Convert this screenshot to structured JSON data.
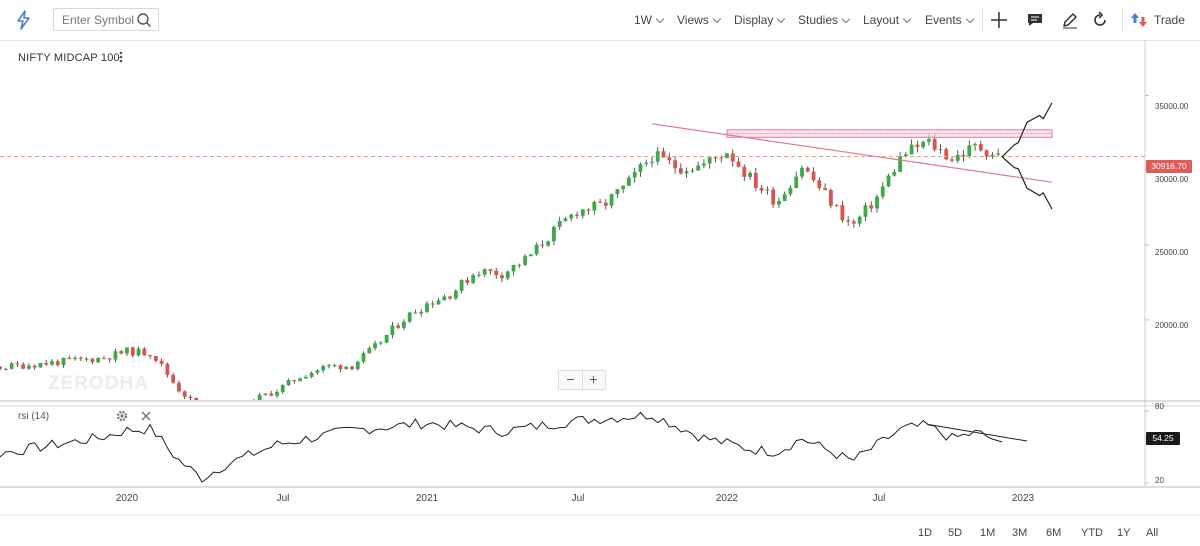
{
  "toolbar": {
    "search_placeholder": "Enter Symbol",
    "interval": "1W",
    "menus": [
      "Views",
      "Display",
      "Studies",
      "Layout",
      "Events"
    ],
    "trade_label": "Trade"
  },
  "symbol": "NIFTY MIDCAP 100",
  "watermark": "ZERODHA",
  "rsi_label": "rsi (14)",
  "zoom": {
    "minus": "−",
    "plus": "+"
  },
  "time_ranges": [
    "1D",
    "5D",
    "1M",
    "3M",
    "6M",
    "YTD",
    "1Y",
    "All"
  ],
  "colors": {
    "up": "#3ea84a",
    "down": "#d9534f",
    "price_line": "#e8a07a",
    "resistance_zone": "#e07aa0",
    "trendline": "#e07a8e"
  },
  "chart_data": {
    "type": "candlestick",
    "price_axis": {
      "ticks": [
        "35000.00",
        "30000.00",
        "25000.00",
        "20000.00"
      ],
      "ylim": [
        14650,
        38700
      ]
    },
    "rsi_axis": {
      "ticks": [
        "80",
        "50",
        "20"
      ],
      "ylim": [
        17.5,
        82.5
      ]
    },
    "x_ticks": [
      "2020",
      "Jul",
      "2021",
      "Jul",
      "2022",
      "Jul",
      "2023"
    ],
    "last_price": "30916.70",
    "last_price_value": 30916.7,
    "rsi_value": "54.25",
    "rsi_value_num": 54.25,
    "price_path": [
      [
        "2019-04",
        16450
      ],
      [
        "2019-07",
        16700
      ],
      [
        "2019-10",
        17150
      ],
      [
        "2019-12",
        17450
      ],
      [
        "2020-01",
        17900
      ],
      [
        "2020-02",
        17800
      ],
      [
        "2020-03",
        15500
      ],
      [
        "2020-04",
        13900
      ],
      [
        "2020-05",
        13400
      ],
      [
        "2020-06",
        14600
      ],
      [
        "2020-07",
        15300
      ],
      [
        "2020-08",
        16300
      ],
      [
        "2020-09",
        16900
      ],
      [
        "2020-10",
        16950
      ],
      [
        "2020-11",
        18300
      ],
      [
        "2020-12",
        20000
      ],
      [
        "2021-01",
        21100
      ],
      [
        "2021-02",
        21800
      ],
      [
        "2021-03",
        23300
      ],
      [
        "2021-04",
        23100
      ],
      [
        "2021-05",
        24100
      ],
      [
        "2021-06",
        25800
      ],
      [
        "2021-07",
        27300
      ],
      [
        "2021-08",
        27600
      ],
      [
        "2021-09",
        29000
      ],
      [
        "2021-10",
        31000
      ],
      [
        "2021-11",
        30200
      ],
      [
        "2021-12",
        30300
      ],
      [
        "2022-01",
        31300
      ],
      [
        "2022-02",
        29300
      ],
      [
        "2022-03",
        27900
      ],
      [
        "2022-04",
        30300
      ],
      [
        "2022-05",
        28200
      ],
      [
        "2022-06",
        26200
      ],
      [
        "2022-07",
        28200
      ],
      [
        "2022-08",
        31000
      ],
      [
        "2022-09",
        31900
      ],
      [
        "2022-10",
        30800
      ],
      [
        "2022-11",
        31600
      ],
      [
        "2022-12",
        30900
      ]
    ],
    "rsi_path": [
      [
        "2019-04",
        40
      ],
      [
        "2019-08",
        45
      ],
      [
        "2019-12",
        58
      ],
      [
        "2020-01",
        64
      ],
      [
        "2020-02",
        65
      ],
      [
        "2020-03",
        40
      ],
      [
        "2020-04",
        24
      ],
      [
        "2020-05",
        36
      ],
      [
        "2020-07",
        52
      ],
      [
        "2020-10",
        64
      ],
      [
        "2021-01",
        70
      ],
      [
        "2021-04",
        63
      ],
      [
        "2021-07",
        72
      ],
      [
        "2021-10",
        77
      ],
      [
        "2021-12",
        58
      ],
      [
        "2022-02",
        48
      ],
      [
        "2022-03",
        46
      ],
      [
        "2022-04",
        57
      ],
      [
        "2022-06",
        38
      ],
      [
        "2022-08",
        65
      ],
      [
        "2022-09",
        68
      ],
      [
        "2022-10",
        57
      ],
      [
        "2022-11",
        62
      ],
      [
        "2022-12",
        54
      ]
    ],
    "drawings": [
      {
        "type": "zone",
        "from": "2022-01",
        "to": "2023-02",
        "low": 32200,
        "high": 32700
      },
      {
        "type": "trendline",
        "from": [
          "2021-10",
          33100
        ],
        "to": [
          "2023-02",
          29200
        ]
      },
      {
        "type": "projection_up",
        "points": [
          [
            "2022-12",
            30900
          ],
          [
            "2023-01",
            33200
          ],
          [
            "2023-02",
            34500
          ]
        ]
      },
      {
        "type": "projection_down",
        "points": [
          [
            "2022-12",
            30900
          ],
          [
            "2023-01",
            28800
          ],
          [
            "2023-02",
            27400
          ]
        ]
      },
      {
        "type": "rsi_trendline",
        "from": [
          "2022-09",
          69
        ],
        "to": [
          "2023-01",
          55
        ]
      }
    ]
  }
}
